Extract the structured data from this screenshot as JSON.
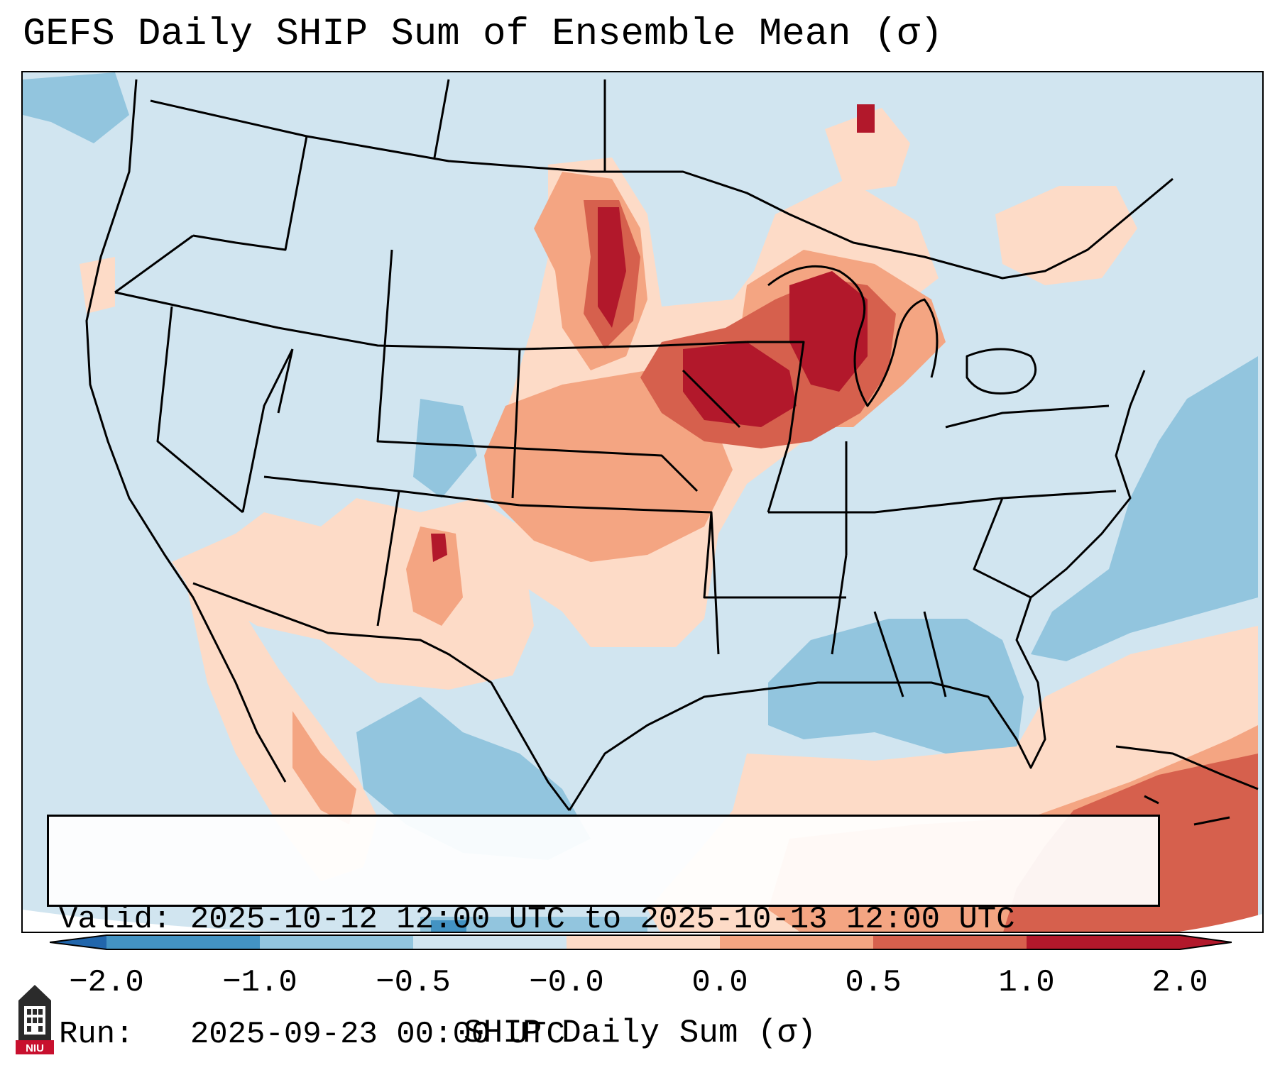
{
  "title": "GEFS Daily SHIP Sum of Ensemble Mean (σ)",
  "info": {
    "valid_line": "Valid: 2025-10-12 12:00 UTC to 2025-10-13 12:00 UTC",
    "run_line": "Run:   2025-09-23 00:00 UTC"
  },
  "colorbar": {
    "label": "SHIP Daily Sum (σ)",
    "ticks": [
      "−2.0",
      "−1.0",
      "−0.5",
      "−0.0",
      "0.0",
      "0.5",
      "1.0",
      "2.0"
    ],
    "colors": [
      "#4393c3",
      "#92c5de",
      "#d1e5f0",
      "#fddbc7",
      "#f4a582",
      "#d6604d",
      "#b2182b"
    ],
    "extend": "both"
  },
  "map": {
    "background_color": "#d1e5f0",
    "anomaly_regions": [
      "upper-midwest-maximum",
      "northern-plains",
      "central-plains",
      "southwest",
      "gulf-of-mexico",
      "caribbean",
      "southeast-negative",
      "atlantic-negative"
    ]
  },
  "logo": {
    "text": "NIU",
    "icon": "university-tower-icon"
  }
}
